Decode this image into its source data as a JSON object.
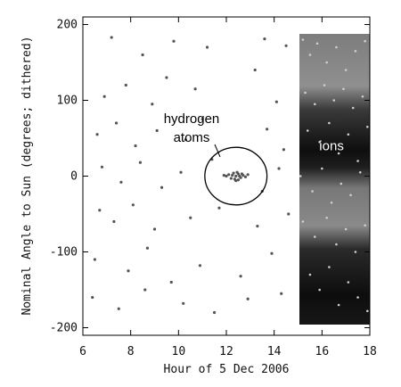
{
  "chart_data": {
    "type": "scatter",
    "title": "",
    "xlabel": "Hour of 5 Dec 2006",
    "ylabel": "Nominal Angle to Sun (degrees; dithered)",
    "xlim": [
      6,
      18
    ],
    "ylim": [
      -210,
      210
    ],
    "x_ticks": [
      6,
      8,
      10,
      12,
      14,
      16,
      18
    ],
    "y_ticks": [
      -200,
      -100,
      0,
      100,
      200
    ],
    "grid": false,
    "legend": "none",
    "annotations": [
      {
        "text_lines": [
          "hydrogen",
          "atoms"
        ],
        "points_to": {
          "x": 12.4,
          "y": 0
        },
        "color": "#000000"
      },
      {
        "text": "ions",
        "at": {
          "x": 16.4,
          "y": 40
        },
        "color": "#ffffff"
      }
    ],
    "highlight_circle": {
      "center": {
        "x": 12.4,
        "y": 0
      },
      "radius_x": 1.3,
      "radius_y": 38
    },
    "series": [
      {
        "points": [
          [
            12.1,
            2
          ],
          [
            12.2,
            -3
          ],
          [
            12.3,
            4
          ],
          [
            12.4,
            0
          ],
          [
            12.5,
            3
          ],
          [
            12.6,
            -2
          ],
          [
            12.7,
            1
          ],
          [
            12.0,
            0
          ],
          [
            12.8,
            -1
          ],
          [
            12.35,
            -4
          ],
          [
            12.45,
            5
          ],
          [
            12.55,
            0
          ],
          [
            12.25,
            1
          ],
          [
            12.65,
            3
          ],
          [
            11.9,
            1
          ],
          [
            12.9,
            2
          ],
          [
            12.4,
            -6
          ],
          [
            12.5,
            -5
          ],
          [
            7.2,
            183
          ],
          [
            8.5,
            160
          ],
          [
            9.8,
            178
          ],
          [
            11.2,
            170
          ],
          [
            13.6,
            181
          ],
          [
            14.5,
            172
          ],
          [
            6.9,
            105
          ],
          [
            7.8,
            120
          ],
          [
            8.9,
            95
          ],
          [
            9.5,
            130
          ],
          [
            10.7,
            115
          ],
          [
            13.2,
            140
          ],
          [
            14.1,
            98
          ],
          [
            6.6,
            55
          ],
          [
            7.4,
            70
          ],
          [
            8.2,
            40
          ],
          [
            9.1,
            60
          ],
          [
            10.3,
            48
          ],
          [
            11.0,
            75
          ],
          [
            13.7,
            62
          ],
          [
            14.4,
            35
          ],
          [
            6.8,
            12
          ],
          [
            7.6,
            -8
          ],
          [
            8.4,
            18
          ],
          [
            9.3,
            -15
          ],
          [
            10.1,
            5
          ],
          [
            11.4,
            22
          ],
          [
            13.5,
            -20
          ],
          [
            14.2,
            10
          ],
          [
            6.7,
            -45
          ],
          [
            7.3,
            -60
          ],
          [
            8.1,
            -38
          ],
          [
            9.0,
            -70
          ],
          [
            10.5,
            -55
          ],
          [
            11.7,
            -42
          ],
          [
            13.3,
            -66
          ],
          [
            14.6,
            -50
          ],
          [
            6.5,
            -110
          ],
          [
            7.9,
            -125
          ],
          [
            8.7,
            -95
          ],
          [
            9.7,
            -140
          ],
          [
            10.9,
            -118
          ],
          [
            12.6,
            -132
          ],
          [
            13.9,
            -102
          ],
          [
            6.4,
            -160
          ],
          [
            7.5,
            -175
          ],
          [
            8.6,
            -150
          ],
          [
            10.2,
            -168
          ],
          [
            11.5,
            -180
          ],
          [
            12.9,
            -162
          ],
          [
            14.3,
            -155
          ]
        ]
      },
      {
        "name": "ions",
        "points": [
          [
            15.2,
            180
          ],
          [
            15.5,
            160
          ],
          [
            15.8,
            175
          ],
          [
            16.2,
            150
          ],
          [
            16.6,
            170
          ],
          [
            17.0,
            140
          ],
          [
            17.4,
            165
          ],
          [
            17.8,
            178
          ],
          [
            15.3,
            110
          ],
          [
            15.7,
            95
          ],
          [
            16.1,
            120
          ],
          [
            16.5,
            100
          ],
          [
            16.9,
            115
          ],
          [
            17.3,
            90
          ],
          [
            17.7,
            105
          ],
          [
            15.4,
            60
          ],
          [
            15.9,
            45
          ],
          [
            16.3,
            70
          ],
          [
            16.7,
            30
          ],
          [
            17.1,
            55
          ],
          [
            17.5,
            20
          ],
          [
            17.9,
            65
          ],
          [
            15.1,
            0
          ],
          [
            15.6,
            -20
          ],
          [
            16.0,
            10
          ],
          [
            16.4,
            -35
          ],
          [
            16.8,
            -10
          ],
          [
            17.2,
            -25
          ],
          [
            17.6,
            5
          ],
          [
            15.2,
            -60
          ],
          [
            15.7,
            -80
          ],
          [
            16.2,
            -55
          ],
          [
            16.6,
            -90
          ],
          [
            17.0,
            -70
          ],
          [
            17.4,
            -100
          ],
          [
            17.8,
            -65
          ],
          [
            15.5,
            -130
          ],
          [
            15.9,
            -150
          ],
          [
            16.3,
            -120
          ],
          [
            16.7,
            -170
          ],
          [
            17.1,
            -140
          ],
          [
            17.5,
            -160
          ],
          [
            17.9,
            -178
          ]
        ]
      }
    ]
  }
}
